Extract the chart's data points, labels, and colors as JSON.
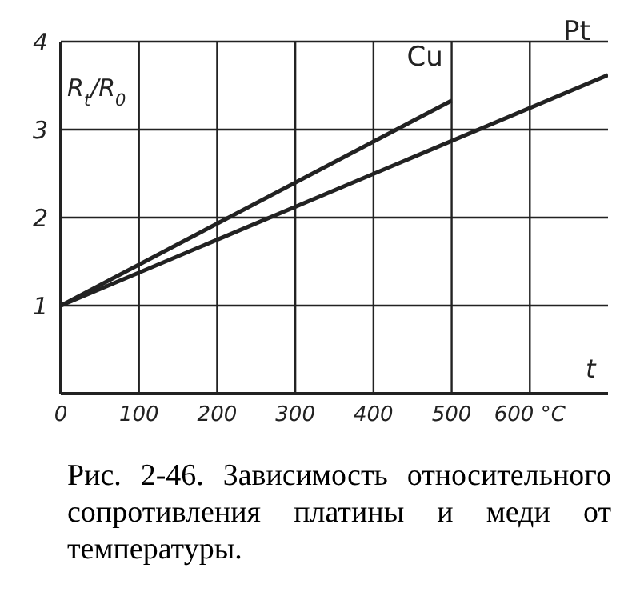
{
  "chart_data": {
    "type": "line",
    "xlabel": "t",
    "ylabel": "R$_{t}$/R$_{0}$",
    "annotations": [
      "Рис. 2-46. Зависимость относительного сопротивления платины и меди от температуры."
    ],
    "series": [
      {
        "name": "Cu",
        "color": "#222222",
        "x": [
          0,
          500
        ],
        "values": [
          1,
          3.33
        ]
      },
      {
        "name": "Pt",
        "color": "#222222",
        "x": [
          0,
          700
        ],
        "values": [
          1,
          3.62
        ]
      }
    ],
    "xlim": [
      0,
      700
    ],
    "xticks": [
      0,
      100,
      200,
      300,
      400,
      500,
      {
        "value": 600,
        "label": "600 °C"
      }
    ],
    "ylim": [
      0,
      4
    ],
    "yticks": [
      1,
      2,
      3,
      4
    ],
    "grid": true,
    "legend": false,
    "marker": "none",
    "line_style": "solid"
  }
}
